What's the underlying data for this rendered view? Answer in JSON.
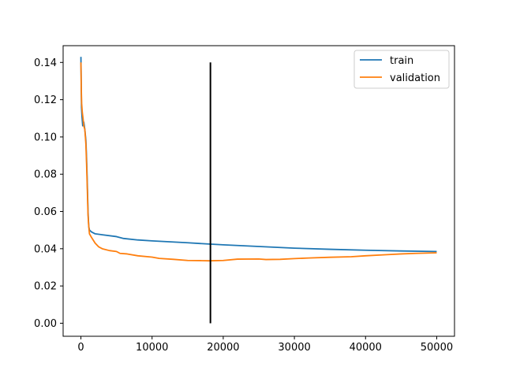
{
  "chart_data": {
    "type": "line",
    "title": "",
    "xlabel": "",
    "ylabel": "",
    "xlim": [
      -2500,
      52500
    ],
    "ylim": [
      -0.007,
      0.149
    ],
    "x_ticks": [
      0,
      10000,
      20000,
      30000,
      40000,
      50000
    ],
    "x_tick_labels": [
      "0",
      "10000",
      "20000",
      "30000",
      "40000",
      "50000"
    ],
    "y_ticks": [
      0.0,
      0.02,
      0.04,
      0.06,
      0.08,
      0.1,
      0.12,
      0.14
    ],
    "y_tick_labels": [
      "0.00",
      "0.02",
      "0.04",
      "0.06",
      "0.08",
      "0.10",
      "0.12",
      "0.14"
    ],
    "grid": false,
    "legend_position": "top-right",
    "series": [
      {
        "name": "train",
        "color": "#1f77b4",
        "points": [
          [
            0,
            0.143
          ],
          [
            80,
            0.116
          ],
          [
            150,
            0.111
          ],
          [
            250,
            0.106
          ],
          [
            400,
            0.108
          ],
          [
            550,
            0.104
          ],
          [
            700,
            0.098
          ],
          [
            800,
            0.088
          ],
          [
            900,
            0.075
          ],
          [
            1000,
            0.06
          ],
          [
            1100,
            0.052
          ],
          [
            1200,
            0.05
          ],
          [
            1500,
            0.049
          ],
          [
            2000,
            0.048
          ],
          [
            3000,
            0.0475
          ],
          [
            5000,
            0.0465
          ],
          [
            6000,
            0.0455
          ],
          [
            8000,
            0.0447
          ],
          [
            10000,
            0.0442
          ],
          [
            15000,
            0.0432
          ],
          [
            18000,
            0.0425
          ],
          [
            20000,
            0.0421
          ],
          [
            25000,
            0.0412
          ],
          [
            30000,
            0.0403
          ],
          [
            35000,
            0.0397
          ],
          [
            40000,
            0.0392
          ],
          [
            45000,
            0.0388
          ],
          [
            50000,
            0.0385
          ]
        ]
      },
      {
        "name": "validation",
        "color": "#ff7f0e",
        "points": [
          [
            0,
            0.14
          ],
          [
            50,
            0.126
          ],
          [
            100,
            0.118
          ],
          [
            200,
            0.113
          ],
          [
            300,
            0.11
          ],
          [
            400,
            0.106
          ],
          [
            550,
            0.104
          ],
          [
            700,
            0.096
          ],
          [
            800,
            0.085
          ],
          [
            900,
            0.072
          ],
          [
            1000,
            0.058
          ],
          [
            1100,
            0.052
          ],
          [
            1200,
            0.048
          ],
          [
            1500,
            0.046
          ],
          [
            2000,
            0.043
          ],
          [
            2500,
            0.041
          ],
          [
            3000,
            0.04
          ],
          [
            4000,
            0.039
          ],
          [
            5000,
            0.0385
          ],
          [
            5500,
            0.0375
          ],
          [
            6500,
            0.0372
          ],
          [
            8000,
            0.0362
          ],
          [
            10000,
            0.0355
          ],
          [
            11000,
            0.0348
          ],
          [
            13000,
            0.0343
          ],
          [
            15000,
            0.0337
          ],
          [
            17000,
            0.0336
          ],
          [
            18000,
            0.0335
          ],
          [
            20000,
            0.0337
          ],
          [
            22000,
            0.0344
          ],
          [
            25000,
            0.0345
          ],
          [
            26000,
            0.0342
          ],
          [
            28000,
            0.0343
          ],
          [
            30000,
            0.0347
          ],
          [
            32000,
            0.035
          ],
          [
            35000,
            0.0354
          ],
          [
            38000,
            0.0357
          ],
          [
            40000,
            0.0362
          ],
          [
            43000,
            0.0368
          ],
          [
            45000,
            0.0372
          ],
          [
            47000,
            0.0375
          ],
          [
            50000,
            0.0378
          ]
        ]
      }
    ],
    "vertical_marker": {
      "x": 18200,
      "y_from": 0.0,
      "y_to": 0.14,
      "color": "#000000"
    }
  }
}
